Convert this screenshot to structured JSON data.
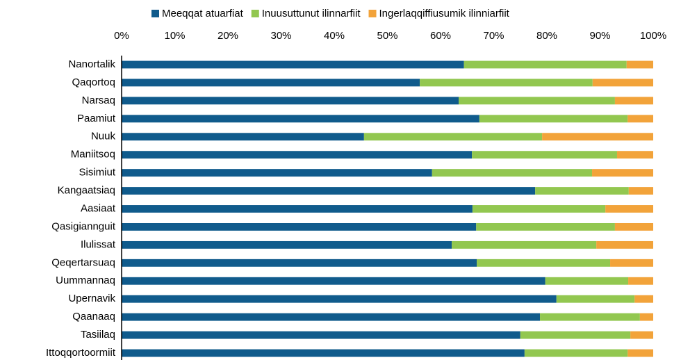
{
  "chart_data": {
    "type": "stacked-barh",
    "categories": [
      "Nanortalik",
      "Qaqortoq",
      "Narsaq",
      "Paamiut",
      "Nuuk",
      "Maniitsoq",
      "Sisimiut",
      "Kangaatsiaq",
      "Aasiaat",
      "Qasigiannguit",
      "Ilulissat",
      "Qeqertarsuaq",
      "Uummannaq",
      "Upernavik",
      "Qaanaaq",
      "Tasiilaq",
      "Ittoqqortoormiit"
    ],
    "series": [
      {
        "name": "Meeqqat atuarfiat",
        "color": "#105b8c",
        "values": [
          64.4,
          56.1,
          63.4,
          67.3,
          45.6,
          65.9,
          58.4,
          77.8,
          66.0,
          66.7,
          62.1,
          66.8,
          79.7,
          81.8,
          78.7,
          75.0,
          75.8
        ]
      },
      {
        "name": "Inuusuttunut ilinnarfiit",
        "color": "#92c750",
        "values": [
          30.6,
          32.5,
          29.4,
          27.9,
          33.5,
          27.3,
          30.1,
          17.6,
          25.0,
          26.1,
          27.2,
          25.1,
          15.6,
          14.7,
          18.8,
          20.7,
          19.4
        ]
      },
      {
        "name": "Ingerlaqqiffiusumik ilinniarfiit",
        "color": "#f2a33a",
        "values": [
          5.0,
          11.4,
          7.2,
          4.8,
          20.9,
          6.8,
          11.5,
          4.6,
          9.0,
          7.2,
          10.7,
          8.1,
          4.7,
          3.5,
          2.5,
          4.3,
          4.8
        ]
      }
    ],
    "xlim": [
      0,
      100
    ],
    "xticks": [
      {
        "value": 0,
        "label": "0%"
      },
      {
        "value": 10,
        "label": "10%"
      },
      {
        "value": 20,
        "label": "20%"
      },
      {
        "value": 30,
        "label": "30%"
      },
      {
        "value": 40,
        "label": "40%"
      },
      {
        "value": 50,
        "label": "50%"
      },
      {
        "value": 60,
        "label": "60%"
      },
      {
        "value": 70,
        "label": "70%"
      },
      {
        "value": 80,
        "label": "80%"
      },
      {
        "value": 90,
        "label": "90%"
      },
      {
        "value": 100,
        "label": "100%"
      }
    ],
    "legend": "top"
  }
}
